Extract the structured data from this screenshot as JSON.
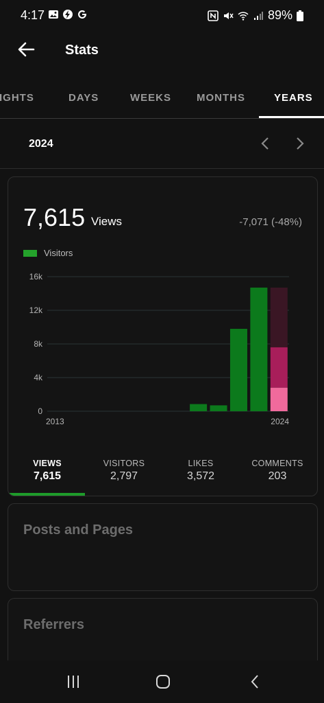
{
  "status_bar": {
    "time": "4:17",
    "battery": "89%"
  },
  "header": {
    "title": "Stats"
  },
  "tabs": [
    {
      "label": "SIGHTS",
      "active": false
    },
    {
      "label": "DAYS",
      "active": false
    },
    {
      "label": "WEEKS",
      "active": false
    },
    {
      "label": "MONTHS",
      "active": false
    },
    {
      "label": "YEARS",
      "active": true
    }
  ],
  "period": {
    "label": "2024"
  },
  "summary": {
    "value": "7,615",
    "unit": "Views",
    "change": "-7,071 (-48%)"
  },
  "legend": {
    "label": "Visitors",
    "color": "#24a22b"
  },
  "chart_data": {
    "type": "bar",
    "categories": [
      "2013",
      "2014",
      "2015",
      "2016",
      "2017",
      "2018",
      "2019",
      "2020",
      "2021",
      "2022",
      "2023",
      "2024"
    ],
    "series": [
      {
        "name": "Visitors",
        "values": [
          0,
          0,
          0,
          0,
          0,
          0,
          0,
          850,
          700,
          9800,
          14700,
          2797
        ]
      }
    ],
    "stacked_2024": {
      "visitors": 2797,
      "likes_layer": 7600,
      "views_total": 14700
    },
    "x_tick_labels": [
      "2013",
      "2024"
    ],
    "y_ticks": [
      0,
      4000,
      8000,
      12000,
      16000
    ],
    "y_tick_labels": [
      "0",
      "4k",
      "8k",
      "12k",
      "16k"
    ],
    "ylim": [
      0,
      16000
    ],
    "grid": true,
    "colors": {
      "bar": "#0c7a1c",
      "selected_bottom": "#f06a9c",
      "selected_middle": "#a81e5a",
      "selected_top": "#3a1624",
      "grid": "#2a3336"
    }
  },
  "stats": [
    {
      "label": "VIEWS",
      "value": "7,615",
      "active": true
    },
    {
      "label": "VISITORS",
      "value": "2,797",
      "active": false
    },
    {
      "label": "LIKES",
      "value": "3,572",
      "active": false
    },
    {
      "label": "COMMENTS",
      "value": "203",
      "active": false
    }
  ],
  "cards": {
    "posts_title": "Posts and Pages",
    "referrers_title": "Referrers"
  }
}
